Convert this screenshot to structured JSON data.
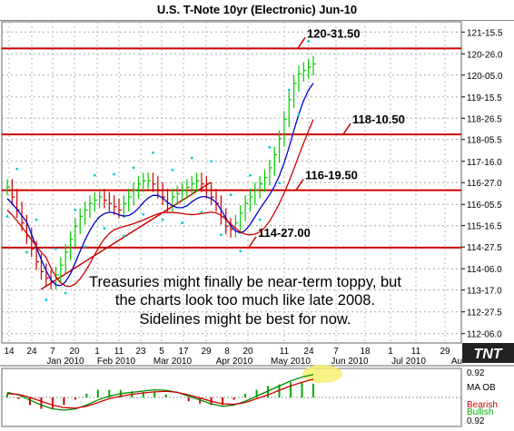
{
  "title": "U.S. T-Note 10yr (Electronic) Jun-10",
  "logo": "TNT",
  "annotation": "Treasuries might finally be near-term toppy, but the charts look too much like late 2008. Sidelines might be best for now.",
  "annotation_lines": [
    "Treasuries might finally be near-term toppy, but",
    "the charts look too much like late 2008.",
    "Sidelines might be best for now."
  ],
  "chart_data": [
    {
      "type": "ohlc",
      "title": "U.S. T-Note 10yr (Electronic) Jun-10",
      "y_tick_labels": [
        "121-15.5",
        "120-26.0",
        "120-05.0",
        "119-15.5",
        "118-26.5",
        "118-05.5",
        "117-16.0",
        "116-27.0",
        "116-05.5",
        "115-16.5",
        "114-27.5",
        "114-06.0",
        "113-17.0",
        "112-27.5",
        "112-06.0"
      ],
      "y_ticks_decimal": [
        121.484,
        120.8125,
        120.15625,
        119.484,
        118.828,
        118.172,
        117.5,
        116.84375,
        116.172,
        115.516,
        114.859,
        114.1875,
        113.53125,
        112.859,
        112.1875
      ],
      "x_day_labels": [
        "14",
        "24",
        "7",
        "20",
        "1",
        "11",
        "23",
        "5",
        "17",
        "29",
        "8",
        "20",
        "11",
        "24",
        "7",
        "18",
        "1",
        "11",
        "29"
      ],
      "x_month_labels": [
        "Jan 2010",
        "Feb 2010",
        "Mar 2010",
        "Apr 2010",
        "May 2010",
        "Jun 2010",
        "Jul 2010",
        "Au"
      ],
      "ylim": [
        111.9,
        121.8
      ],
      "horizontal_levels": [
        {
          "label": "120-31.50",
          "value": 120.98
        },
        {
          "label": "118-10.50",
          "value": 118.33
        },
        {
          "label": "116-19.50",
          "value": 116.61
        },
        {
          "label": "114-27.00",
          "value": 114.84
        }
      ],
      "trendline": {
        "from": {
          "date": "2009-12-28",
          "value": 113.55
        },
        "to": {
          "date": "2010-04-07",
          "value": 116.85
        }
      },
      "series": [
        {
          "name": "price",
          "color": "#00cc00",
          "down_color": "#cc0000",
          "values": [
            116.7,
            116.4,
            116.0,
            115.6,
            115.2,
            114.8,
            114.4,
            114.1,
            113.9,
            113.8,
            114.0,
            114.3,
            114.7,
            115.1,
            115.5,
            115.8,
            116.0,
            116.2,
            116.3,
            116.4,
            116.3,
            116.2,
            116.1,
            116.0,
            116.2,
            116.4,
            116.6,
            116.8,
            116.9,
            116.9,
            116.8,
            116.6,
            116.4,
            116.2,
            116.4,
            116.5,
            116.6,
            116.7,
            116.8,
            116.9,
            116.8,
            116.6,
            116.4,
            116.2,
            115.8,
            115.5,
            115.4,
            115.6,
            115.9,
            116.2,
            116.4,
            116.6,
            116.8,
            117.0,
            117.3,
            117.7,
            118.2,
            118.8,
            119.4,
            119.9,
            120.2,
            120.3,
            120.4,
            120.5
          ]
        },
        {
          "name": "moving-average-1",
          "color": "#0000cc"
        },
        {
          "name": "moving-average-2",
          "color": "#cc0000"
        }
      ]
    },
    {
      "type": "line",
      "title": "",
      "y_tick_labels": [
        "0.92",
        "MA OB",
        "Bearish",
        "Bullish",
        "0.92"
      ],
      "series": [
        {
          "name": "",
          "color": "#008800",
          "values": [
            0.2,
            0.1,
            -0.1,
            -0.3,
            -0.45,
            -0.5,
            -0.45,
            -0.3,
            -0.1,
            0.05,
            0.15,
            0.2,
            0.25,
            0.3,
            0.28,
            0.2,
            0.05,
            -0.1,
            -0.25,
            -0.35,
            -0.3,
            -0.15,
            0.05,
            0.25,
            0.45,
            0.65,
            0.8,
            0.9
          ]
        },
        {
          "name": "",
          "color": "#cc0000",
          "values": [
            0.15,
            0.12,
            0.0,
            -0.15,
            -0.3,
            -0.4,
            -0.42,
            -0.35,
            -0.2,
            -0.05,
            0.05,
            0.12,
            0.18,
            0.22,
            0.24,
            0.2,
            0.1,
            -0.02,
            -0.15,
            -0.25,
            -0.27,
            -0.2,
            -0.05,
            0.1,
            0.28,
            0.45,
            0.6,
            0.72
          ]
        }
      ]
    }
  ],
  "colors": {
    "level_line": "#cc0000",
    "grid": "#999999",
    "background": "#ffffff",
    "highlight": "#f5f06a"
  }
}
